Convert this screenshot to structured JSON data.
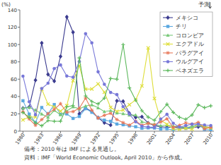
{
  "chart_data": {
    "type": "line",
    "y_label": "(%)",
    "annotations": [
      "予測"
    ],
    "notes": [
      "備考：2010 年は IMF による見通し。",
      "資料：IMF「World Economic Outlook, April 2010」から作成。"
    ],
    "x": [
      1980,
      1981,
      1982,
      1983,
      1984,
      1985,
      1986,
      1987,
      1988,
      1989,
      1990,
      1991,
      1992,
      1993,
      1994,
      1995,
      1996,
      1997,
      1998,
      1999,
      2000,
      2001,
      2002,
      2003,
      2004,
      2005,
      2006,
      2007,
      2008,
      2009,
      2010
    ],
    "xlim": [
      1979.5,
      2010.5
    ],
    "xticks": [
      1980,
      1983,
      1986,
      1989,
      1992,
      1995,
      1998,
      2001,
      2004,
      2007,
      2010
    ],
    "ylim": [
      0,
      140
    ],
    "yticks": [
      0,
      20,
      40,
      60,
      80,
      100,
      120,
      140
    ],
    "grid": false,
    "legend": "top-right",
    "series": [
      {
        "name": "メキシコ",
        "color": "#3b3b8f",
        "marker": "diamond",
        "line_style": "solid",
        "values": [
          26.4,
          27.9,
          58.9,
          101.8,
          65.5,
          57.7,
          86.2,
          131.8,
          114.2,
          20.0,
          26.7,
          22.7,
          15.5,
          9.8,
          7.0,
          35.0,
          34.4,
          20.6,
          15.9,
          16.6,
          9.5,
          6.4,
          5.0,
          4.5,
          4.7,
          4.0,
          3.6,
          4.0,
          5.1,
          5.3,
          4.2
        ]
      },
      {
        "name": "チリ",
        "color": "#5aa8e0",
        "marker": "square",
        "line_style": "solid",
        "values": [
          35.1,
          19.7,
          9.9,
          27.3,
          19.9,
          30.7,
          19.5,
          19.9,
          14.7,
          17.0,
          26.0,
          21.8,
          15.4,
          12.7,
          11.4,
          8.2,
          7.4,
          6.1,
          5.1,
          3.3,
          3.8,
          3.6,
          2.5,
          2.8,
          1.1,
          3.1,
          3.4,
          4.4,
          8.7,
          1.7,
          1.5
        ]
      },
      {
        "name": "コロンビア",
        "color": "#78c878",
        "marker": "triangle",
        "line_style": "solid",
        "values": [
          26.5,
          27.5,
          24.5,
          19.8,
          16.1,
          24.0,
          18.9,
          23.3,
          28.1,
          25.8,
          29.1,
          30.4,
          27.0,
          22.6,
          23.8,
          21.0,
          20.2,
          18.5,
          18.7,
          10.9,
          9.2,
          8.0,
          6.3,
          7.1,
          5.9,
          5.0,
          4.3,
          5.5,
          7.0,
          4.2,
          3.8
        ]
      },
      {
        "name": "エクアドル",
        "color": "#dede3a",
        "marker": "x",
        "line_style": "solid",
        "values": [
          13.0,
          16.4,
          16.3,
          48.4,
          31.2,
          28.0,
          23.0,
          29.5,
          58.2,
          75.6,
          48.5,
          48.7,
          54.6,
          45.0,
          27.4,
          22.9,
          24.4,
          30.6,
          36.1,
          52.2,
          96.1,
          37.7,
          12.6,
          7.9,
          2.7,
          2.1,
          3.3,
          2.3,
          8.4,
          5.2,
          3.8
        ]
      },
      {
        "name": "パラグアイ",
        "color": "#e8785a",
        "marker": "star",
        "line_style": "solid",
        "values": [
          22.4,
          14.0,
          6.8,
          13.4,
          20.3,
          25.2,
          31.7,
          21.8,
          22.6,
          26.4,
          38.2,
          24.2,
          15.1,
          18.3,
          20.6,
          13.4,
          9.8,
          7.0,
          11.6,
          6.8,
          9.0,
          7.3,
          10.5,
          14.2,
          4.3,
          6.8,
          9.6,
          8.1,
          10.2,
          2.6,
          4.5
        ]
      },
      {
        "name": "ウルグアイ",
        "color": "#7878d8",
        "marker": "circle",
        "line_style": "solid",
        "values": [
          63.5,
          34.0,
          19.0,
          49.2,
          55.3,
          72.2,
          76.4,
          63.6,
          62.2,
          80.4,
          112.5,
          102.0,
          68.5,
          54.1,
          44.7,
          42.2,
          28.3,
          19.8,
          10.8,
          5.7,
          4.8,
          4.4,
          14.0,
          19.4,
          9.2,
          4.7,
          6.4,
          8.1,
          7.9,
          7.1,
          6.5
        ]
      },
      {
        "name": "ベネズエラ",
        "color": "#5cb85c",
        "marker": "plus",
        "line_style": "solid",
        "values": [
          21.5,
          16.0,
          9.7,
          6.2,
          12.2,
          11.4,
          11.5,
          28.1,
          29.5,
          84.5,
          40.7,
          34.2,
          31.4,
          38.1,
          60.8,
          59.9,
          99.9,
          50.0,
          35.8,
          23.6,
          16.2,
          12.5,
          22.4,
          31.1,
          21.7,
          16.0,
          13.7,
          18.7,
          30.4,
          27.1,
          29.2
        ]
      }
    ]
  }
}
